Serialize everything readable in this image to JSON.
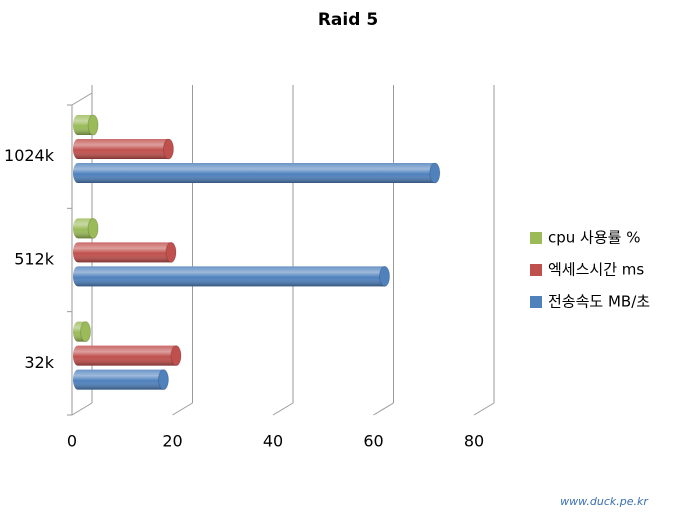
{
  "chart_data": {
    "type": "bar",
    "orientation": "horizontal",
    "style": "3d-cylinder",
    "title": "Raid 5",
    "categories": [
      "32k",
      "512k",
      "1024k"
    ],
    "series": [
      {
        "name": "cpu 사용률 %",
        "color": "#9bbb59",
        "values": [
          1.5,
          3,
          3
        ]
      },
      {
        "name": "엑세스시간 ms",
        "color": "#c0504d",
        "values": [
          19.5,
          18.5,
          18
        ]
      },
      {
        "name": "전송속도 MB/초",
        "color": "#4f81bd",
        "values": [
          17,
          61,
          71
        ]
      }
    ],
    "xlim": [
      0,
      80
    ],
    "xticks": [
      0,
      20,
      40,
      60,
      80
    ],
    "grid": true,
    "legend": "right",
    "watermark": "www.duck.pe.kr"
  }
}
